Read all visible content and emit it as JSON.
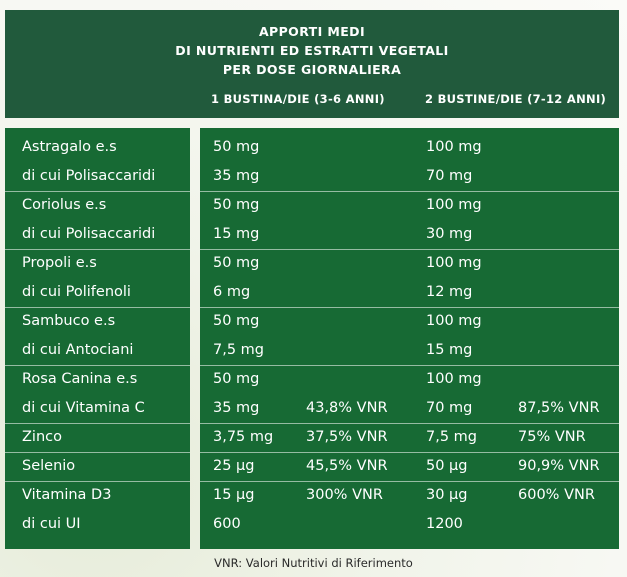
{
  "header": {
    "title_lines": [
      "APPORTI MEDI",
      "DI NUTRIENTI ED ESTRATTI VEGETALI",
      "PER DOSE GIORNALIERA"
    ],
    "col1": "1 BUSTINA/DIE (3-6 ANNI)",
    "col2": "2 BUSTINE/DIE (7-12 ANNI)"
  },
  "rows": [
    {
      "label": "Astragalo e.s",
      "d1": "50 mg",
      "v1": "",
      "d2": "100 mg",
      "v2": "",
      "divider": false
    },
    {
      "label": "di cui Polisaccaridi",
      "d1": "35 mg",
      "v1": "",
      "d2": "70 mg",
      "v2": "",
      "divider": false
    },
    {
      "label": "Coriolus e.s",
      "d1": "50 mg",
      "v1": "",
      "d2": "100 mg",
      "v2": "",
      "divider": true
    },
    {
      "label": "di cui Polisaccaridi",
      "d1": "15 mg",
      "v1": "",
      "d2": "30 mg",
      "v2": "",
      "divider": false
    },
    {
      "label": "Propoli e.s",
      "d1": "50 mg",
      "v1": "",
      "d2": "100 mg",
      "v2": "",
      "divider": true
    },
    {
      "label": "di cui Polifenoli",
      "d1": "6 mg",
      "v1": "",
      "d2": "12 mg",
      "v2": "",
      "divider": false
    },
    {
      "label": "Sambuco e.s",
      "d1": "50 mg",
      "v1": "",
      "d2": "100 mg",
      "v2": "",
      "divider": true
    },
    {
      "label": "di cui Antociani",
      "d1": "7,5 mg",
      "v1": "",
      "d2": "15 mg",
      "v2": "",
      "divider": false
    },
    {
      "label": "Rosa Canina e.s",
      "d1": "50 mg",
      "v1": "",
      "d2": "100 mg",
      "v2": "",
      "divider": true
    },
    {
      "label": "di cui Vitamina C",
      "d1": "35 mg",
      "v1": "43,8% VNR",
      "d2": "70 mg",
      "v2": "87,5% VNR",
      "divider": false
    },
    {
      "label": "Zinco",
      "d1": "3,75 mg",
      "v1": "37,5% VNR",
      "d2": "7,5 mg",
      "v2": "75% VNR",
      "divider": true
    },
    {
      "label": "Selenio",
      "d1": "25 µg",
      "v1": "45,5% VNR",
      "d2": "50 µg",
      "v2": "90,9% VNR",
      "divider": true
    },
    {
      "label": "Vitamina D3",
      "d1": "15 µg",
      "v1": "300% VNR",
      "d2": "30 µg",
      "v2": "600% VNR",
      "divider": true
    },
    {
      "label": "di cui UI",
      "d1": "600",
      "v1": "",
      "d2": "1200",
      "v2": "",
      "divider": false
    }
  ],
  "footnote": "VNR: Valori Nutritivi di Riferimento"
}
